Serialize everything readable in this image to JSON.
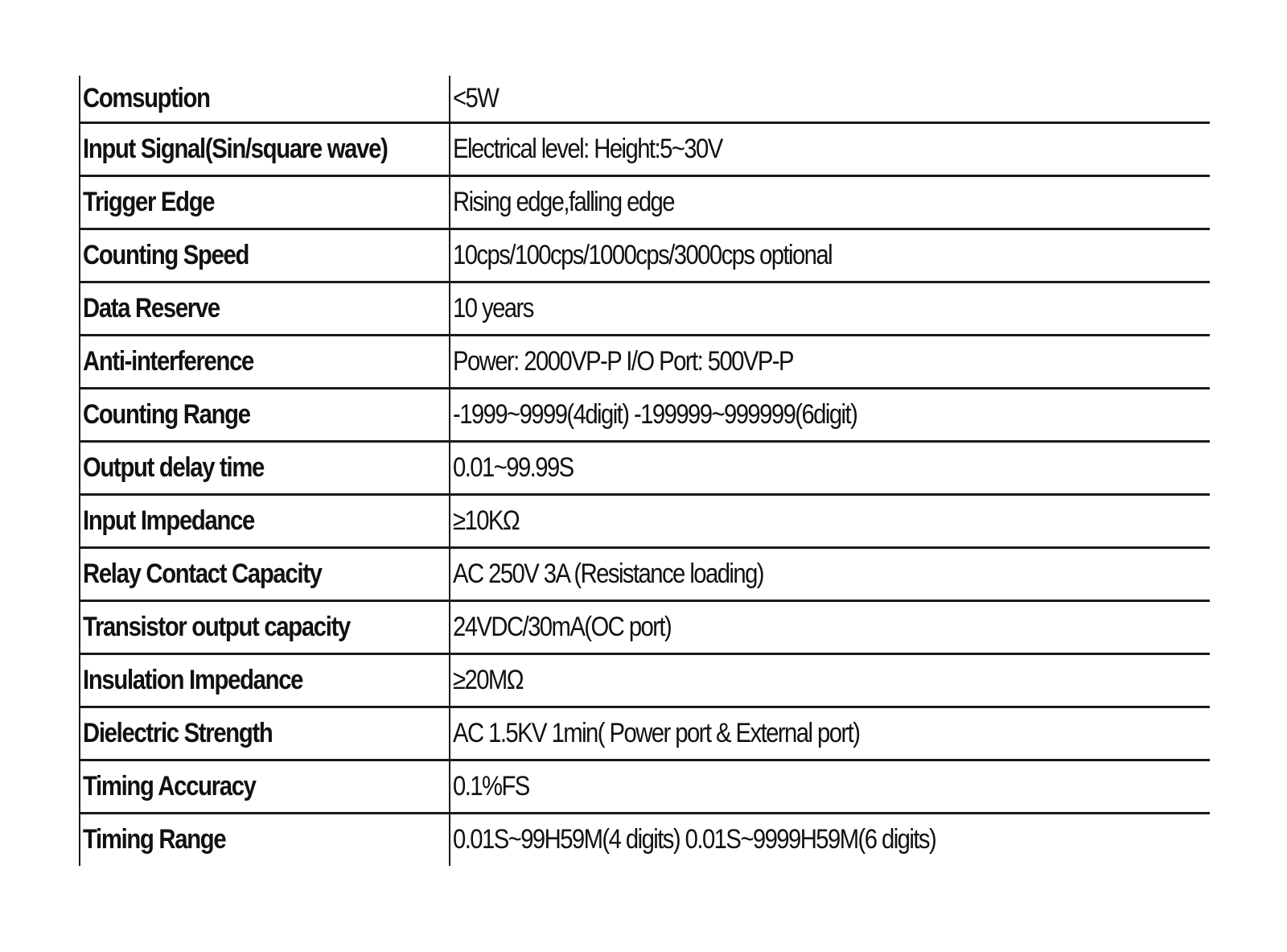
{
  "spec_table": {
    "rows": [
      {
        "param": "Comsuption",
        "value": "<5W"
      },
      {
        "param": "Input Signal(Sin/square wave)",
        "value": "Electrical level: Height:5~30V"
      },
      {
        "param": "Trigger Edge",
        "value": "Rising edge,falling edge"
      },
      {
        "param": "Counting Speed",
        "value": "10cps/100cps/1000cps/3000cps optional"
      },
      {
        "param": "Data Reserve",
        "value": "10 years"
      },
      {
        "param": "Anti-interference",
        "value": "Power: 2000VP-P I/O Port: 500VP-P"
      },
      {
        "param": "Counting Range",
        "value": "-1999~9999(4digit) -199999~999999(6digit)"
      },
      {
        "param": "Output delay time",
        "value": "0.01~99.99S"
      },
      {
        "param": "Input Impedance",
        "value": "≥10KΩ"
      },
      {
        "param": "Relay Contact Capacity",
        "value": "AC 250V 3A (Resistance loading)"
      },
      {
        "param": "Transistor output capacity",
        "value": "24VDC/30mA(OC port)"
      },
      {
        "param": "Insulation Impedance",
        "value": "≥20MΩ"
      },
      {
        "param": "Dielectric Strength",
        "value": "AC 1.5KV 1min( Power port & External port)"
      },
      {
        "param": "Timing Accuracy",
        "value": "0.1%FS"
      },
      {
        "param": "Timing Range",
        "value": "0.01S~99H59M(4 digits) 0.01S~9999H59M(6 digits)"
      }
    ]
  }
}
